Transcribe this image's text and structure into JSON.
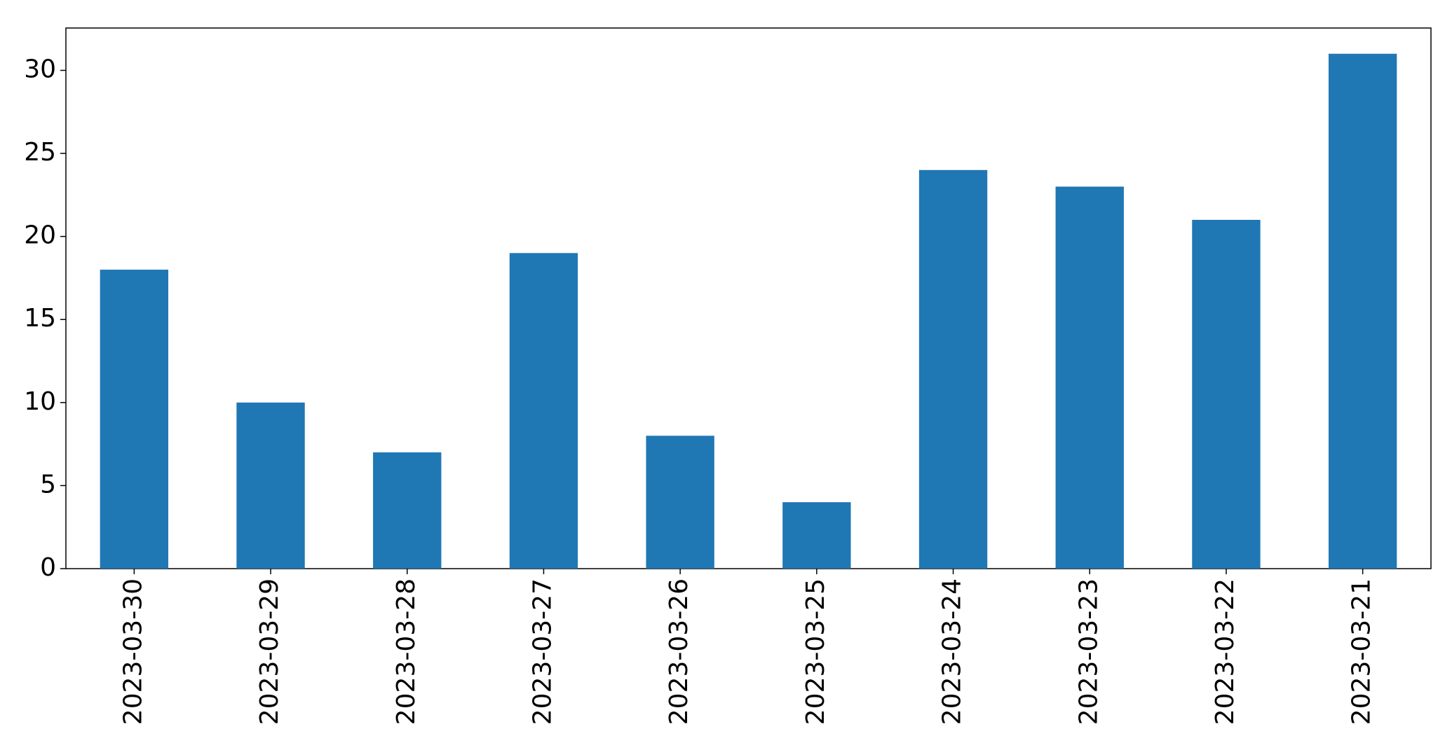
{
  "chart_data": {
    "type": "bar",
    "categories": [
      "2023-03-30",
      "2023-03-29",
      "2023-03-28",
      "2023-03-27",
      "2023-03-26",
      "2023-03-25",
      "2023-03-24",
      "2023-03-23",
      "2023-03-22",
      "2023-03-21"
    ],
    "values": [
      18,
      10,
      7,
      19,
      8,
      4,
      24,
      23,
      21,
      31
    ],
    "color": "#1f77b4",
    "ylim": [
      0,
      32.55
    ],
    "yticks": [
      0,
      5,
      10,
      15,
      20,
      25,
      30
    ],
    "grid": false
  }
}
